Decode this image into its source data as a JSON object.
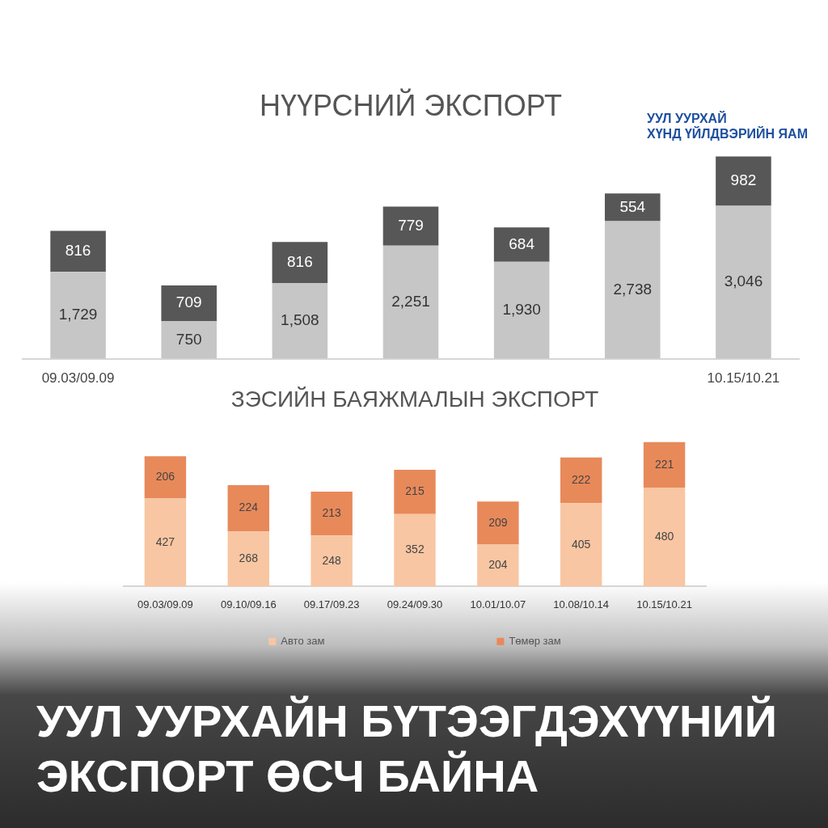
{
  "chart_data": [
    {
      "type": "bar",
      "title": "НҮҮРСНИЙ ЭКСПОРТ",
      "categories": [
        "09.03/09.09",
        null,
        null,
        null,
        null,
        null,
        "10.15/10.21"
      ],
      "series": [
        {
          "color": "#c6c6c6",
          "values": [
            1729,
            750,
            1508,
            2251,
            1930,
            2738,
            3046
          ],
          "value_labels": [
            "1,729",
            "750",
            "1,508",
            "2,251",
            "1,930",
            "2,738",
            "3,046"
          ]
        },
        {
          "color": "#575757",
          "values": [
            816,
            709,
            816,
            779,
            684,
            554,
            982
          ],
          "value_labels": [
            "816",
            "709",
            "816",
            "779",
            "684",
            "554",
            "982"
          ]
        }
      ],
      "stacked": true,
      "tick_labels": "x",
      "annotations": [
        "УУЛ УУРХАЙ\nХҮНД ҮЙЛДВЭРИЙН ЯАМ"
      ]
    },
    {
      "type": "bar",
      "title": "ЗЭСИЙН БАЯЖМАЛЫН ЭКСПОРТ",
      "categories": [
        "09.03/09.09",
        "09.10/09.16",
        "09.17/09.23",
        "09.24/09.30",
        "10.01/10.07",
        "10.08/10.14",
        "10.15/10.21"
      ],
      "series": [
        {
          "name": "Авто зам",
          "color": "#f8c6a2",
          "values": [
            427,
            268,
            248,
            352,
            204,
            405,
            480
          ]
        },
        {
          "name": "Төмөр зам",
          "color": "#e8895a",
          "values": [
            206,
            224,
            213,
            215,
            209,
            222,
            221
          ]
        }
      ],
      "stacked": true,
      "data_labels": true,
      "tick_labels": "x",
      "legend": "bottom",
      "annotations": [
        "УУЛ УУРХАЙН БҮТЭЭГДЭХҮҮНИЙ ЭКСПОРТ ӨСЧ БАЙНА"
      ]
    }
  ]
}
